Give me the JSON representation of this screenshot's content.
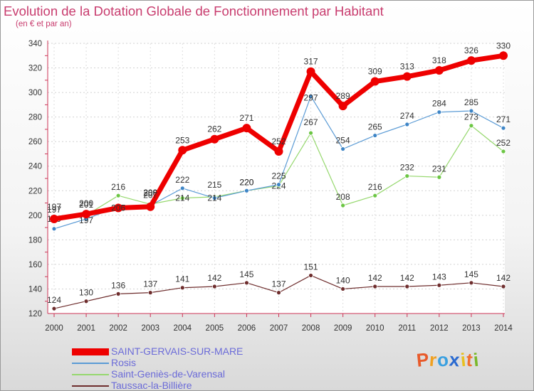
{
  "header": {
    "title": "Evolution de la Dotation Globale de Fonctionnement par Habitant",
    "subtitle": "(en € et par an)"
  },
  "brand": {
    "letters": [
      "P",
      "r",
      "o",
      "x",
      "i",
      "t",
      "i"
    ],
    "colors": [
      "#e85a2a",
      "#f0a020",
      "#3aa0e0",
      "#2a6ad0",
      "#e8c020",
      "#f07030",
      "#7ab82a"
    ]
  },
  "chart_data": {
    "type": "line",
    "title": "Evolution de la Dotation Globale de Fonctionnement par Habitant",
    "subtitle": "(en € et par an)",
    "xlabel": "",
    "ylabel": "",
    "ylim": [
      120,
      340
    ],
    "y_ticks": [
      120,
      140,
      160,
      180,
      200,
      220,
      240,
      260,
      280,
      300,
      320,
      340
    ],
    "categories": [
      "2000",
      "2001",
      "2002",
      "2003",
      "2004",
      "2005",
      "2006",
      "2007",
      "2008",
      "2009",
      "2010",
      "2011",
      "2012",
      "2013",
      "2014"
    ],
    "grid": true,
    "legend_position": "bottom-left",
    "series": [
      {
        "name": "Saint-Geniès-de-Varensal",
        "color": "#96d86e",
        "marker": "#6cc644",
        "values": [
          197,
          200,
          216,
          209,
          214,
          215,
          220,
          224,
          267,
          208,
          216,
          232,
          231,
          273,
          252
        ]
      },
      {
        "name": "Rosis",
        "color": "#5b9bd5",
        "marker": "#3e85c6",
        "values": [
          189,
          197,
          207,
          208,
          222,
          214,
          220,
          225,
          297,
          254,
          265,
          274,
          284,
          285,
          271
        ]
      },
      {
        "name": "Taussac-la-Billière",
        "color": "#6e2d2d",
        "marker": "#6e2d2d",
        "values": [
          124,
          130,
          136,
          137,
          141,
          142,
          145,
          137,
          151,
          140,
          142,
          142,
          143,
          145,
          142
        ]
      },
      {
        "name": "SAINT-GERVAIS-SUR-MARE",
        "color": "#ee0000",
        "marker": "#ee0000",
        "values": [
          197,
          201,
          206,
          207,
          253,
          262,
          271,
          252,
          317,
          289,
          309,
          313,
          318,
          326,
          330
        ]
      }
    ],
    "legend_order": [
      "SAINT-GERVAIS-SUR-MARE",
      "Rosis",
      "Saint-Geniès-de-Varensal",
      "Taussac-la-Billière"
    ]
  }
}
